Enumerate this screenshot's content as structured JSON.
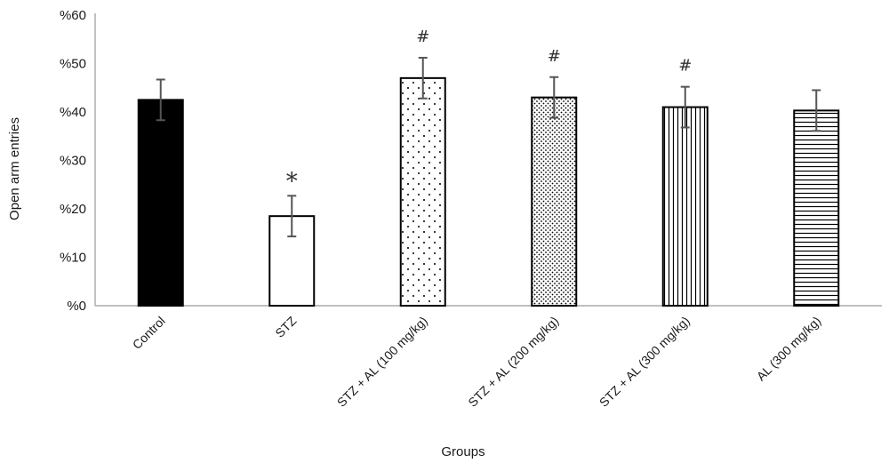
{
  "chart_data": {
    "type": "bar",
    "categories": [
      "Control",
      "STZ",
      "STZ + AL (100 mg/kg)",
      "STZ + AL (200 mg/kg)",
      "STZ + AL (300 mg/kg)",
      "AL (300 mg/kg)"
    ],
    "values": [
      42.5,
      18.5,
      47.0,
      43.0,
      41.0,
      40.3
    ],
    "errors": [
      4.2,
      4.2,
      4.2,
      4.2,
      4.2,
      4.2
    ],
    "annotations": [
      "",
      "*",
      "#",
      "#",
      "#",
      ""
    ],
    "bar_fills": [
      "solid",
      "empty",
      "sparse-dots",
      "dense-dots",
      "vertical-lines",
      "horizontal-lines"
    ],
    "title": "",
    "xlabel": "Groups",
    "ylabel": "Open arm entries",
    "ylim": [
      0,
      60
    ],
    "yticks": [
      0,
      10,
      20,
      30,
      40,
      50,
      60
    ],
    "ytick_labels": [
      "%0",
      "%10",
      "%20",
      "%30",
      "%40",
      "%50",
      "%60"
    ],
    "grid": false,
    "legend": "none",
    "colors": {
      "bar_stroke": "#000000",
      "bar_fill": "#000000",
      "error_bar": "#555555",
      "axis": "#999999"
    }
  }
}
